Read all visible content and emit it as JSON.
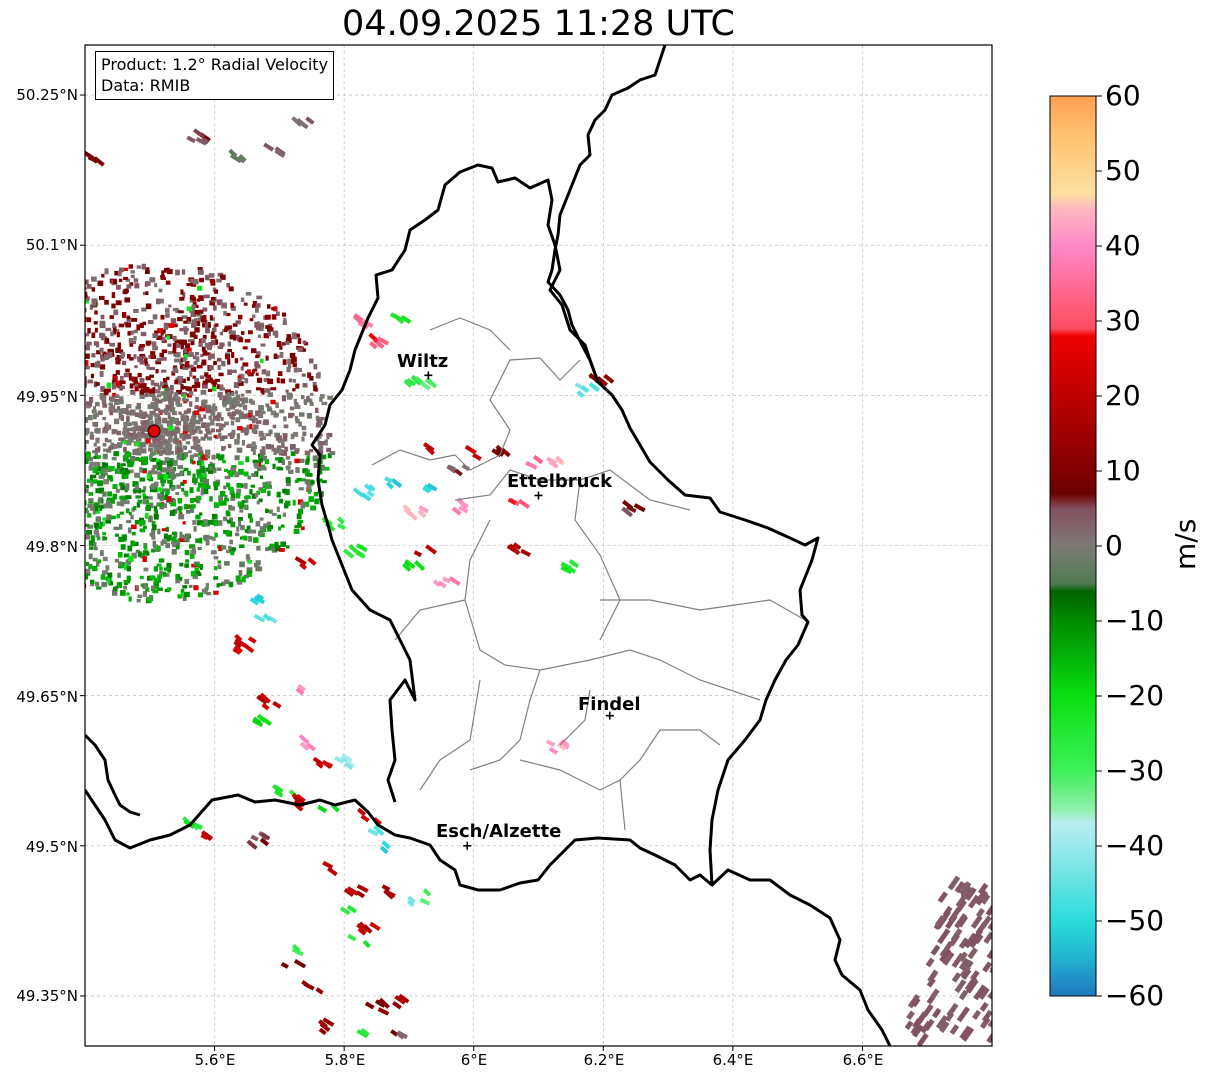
{
  "title": "04.09.2025 11:28 UTC",
  "info": {
    "product": "Product: 1.2° Radial Velocity",
    "data": "Data: RMIB"
  },
  "map": {
    "lon_range": [
      5.4,
      6.8
    ],
    "lat_range": [
      49.3,
      50.3
    ],
    "lon_ticks": [
      "5.6°E",
      "5.8°E",
      "6°E",
      "6.2°E",
      "6.4°E",
      "6.6°E"
    ],
    "lat_ticks": [
      "50.25°N",
      "50.1°N",
      "49.95°N",
      "49.8°N",
      "49.65°N",
      "49.5°N",
      "49.35°N"
    ],
    "grid": true,
    "radar_site_color": "#e00000",
    "border_color": "#000000",
    "canton_color": "#808080"
  },
  "cities": [
    {
      "name": "Wiltz",
      "lon": 5.93,
      "lat": 49.97
    },
    {
      "name": "Ettelbruck",
      "lon": 6.1,
      "lat": 49.85
    },
    {
      "name": "Findel",
      "lon": 6.21,
      "lat": 49.63
    },
    {
      "name": "Esch/Alzette",
      "lon": 5.99,
      "lat": 49.5
    }
  ],
  "colorbar": {
    "label": "m/s",
    "range": [
      -60,
      60
    ],
    "ticks": [
      "60",
      "50",
      "40",
      "30",
      "20",
      "10",
      "0",
      "−10",
      "−20",
      "−30",
      "−40",
      "−50",
      "−60"
    ],
    "stops": [
      {
        "v": -60,
        "c": "#1f78c0"
      },
      {
        "v": -55,
        "c": "#22b2d0"
      },
      {
        "v": -50,
        "c": "#2adcdc"
      },
      {
        "v": -40,
        "c": "#9ae8ea"
      },
      {
        "v": -37,
        "c": "#b8eef0"
      },
      {
        "v": -35,
        "c": "#8ef0a8"
      },
      {
        "v": -30,
        "c": "#3ef05a"
      },
      {
        "v": -20,
        "c": "#08e010"
      },
      {
        "v": -10,
        "c": "#008a00"
      },
      {
        "v": -6,
        "c": "#006400"
      },
      {
        "v": -5,
        "c": "#507a52"
      },
      {
        "v": 0,
        "c": "#7e7a76"
      },
      {
        "v": 5,
        "c": "#845060"
      },
      {
        "v": 7,
        "c": "#6e0000"
      },
      {
        "v": 20,
        "c": "#c00000"
      },
      {
        "v": 28,
        "c": "#f00000"
      },
      {
        "v": 29,
        "c": "#ff4c60"
      },
      {
        "v": 40,
        "c": "#ff88c8"
      },
      {
        "v": 45,
        "c": "#ffb8c0"
      },
      {
        "v": 47,
        "c": "#ffe0a0"
      },
      {
        "v": 55,
        "c": "#ffc070"
      },
      {
        "v": 60,
        "c": "#ffa050"
      }
    ]
  }
}
